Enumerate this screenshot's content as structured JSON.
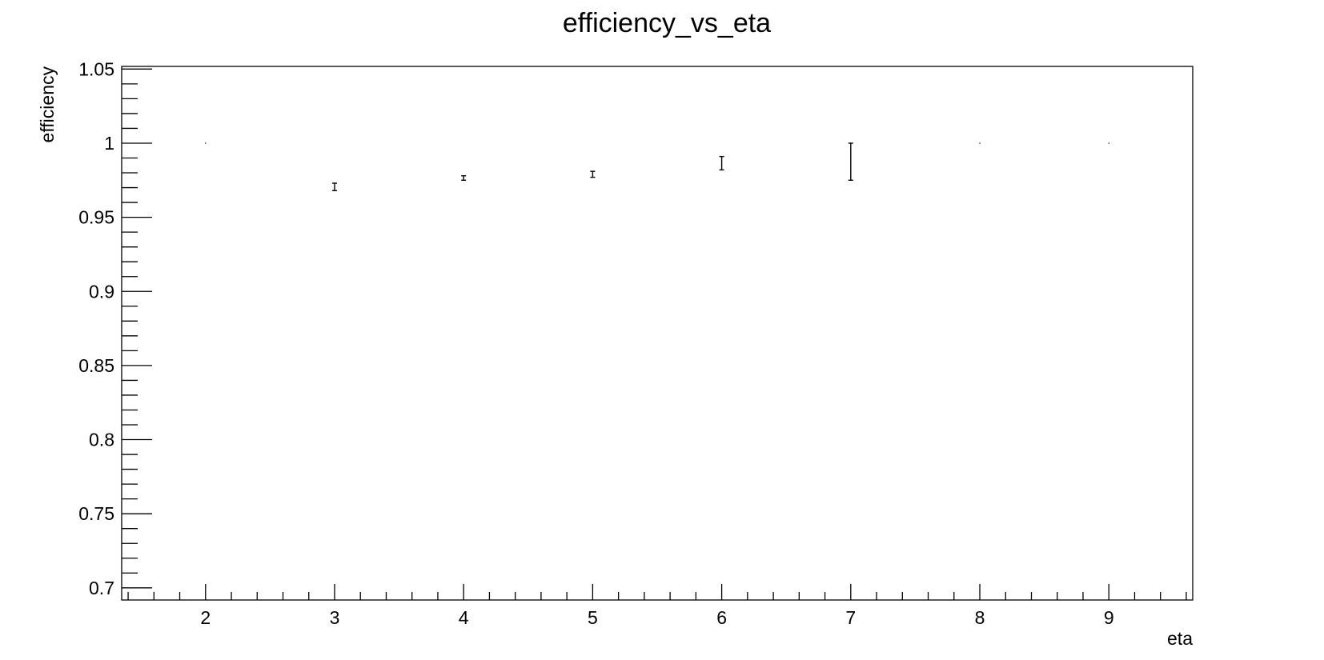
{
  "chart_data": {
    "type": "scatter",
    "title": "efficiency_vs_eta",
    "xlabel": "eta",
    "ylabel": "efficiency",
    "xlim": [
      1.35,
      9.65
    ],
    "ylim": [
      0.6918,
      1.0518
    ],
    "x_ticks": [
      2,
      3,
      4,
      5,
      6,
      7,
      8,
      9
    ],
    "x_tick_labels": [
      "2",
      "3",
      "4",
      "5",
      "6",
      "7",
      "8",
      "9"
    ],
    "y_ticks": [
      0.7,
      0.75,
      0.8,
      0.85,
      0.9,
      0.95,
      1,
      1.05
    ],
    "y_tick_labels": [
      "0.7",
      "0.75",
      "0.8",
      "0.85",
      "0.9",
      "0.95",
      "1",
      "1.05"
    ],
    "grid": false,
    "series": [
      {
        "marker": "error-bar",
        "color": "#000000",
        "points": [
          {
            "x": 2,
            "y": 1.0,
            "err_low": 0.0,
            "err_high": 0.0
          },
          {
            "x": 3,
            "y": 0.9705,
            "err_low": 0.0025,
            "err_high": 0.0025
          },
          {
            "x": 4,
            "y": 0.9765,
            "err_low": 0.0015,
            "err_high": 0.0015
          },
          {
            "x": 5,
            "y": 0.979,
            "err_low": 0.002,
            "err_high": 0.002
          },
          {
            "x": 6,
            "y": 0.9865,
            "err_low": 0.0045,
            "err_high": 0.0045
          },
          {
            "x": 7,
            "y": 0.9875,
            "err_low": 0.0125,
            "err_high": 0.0125
          },
          {
            "x": 8,
            "y": 1.0,
            "err_low": 0.0,
            "err_high": 0.0
          },
          {
            "x": 9,
            "y": 1.0,
            "err_low": 0.0,
            "err_high": 0.0
          }
        ]
      }
    ]
  }
}
